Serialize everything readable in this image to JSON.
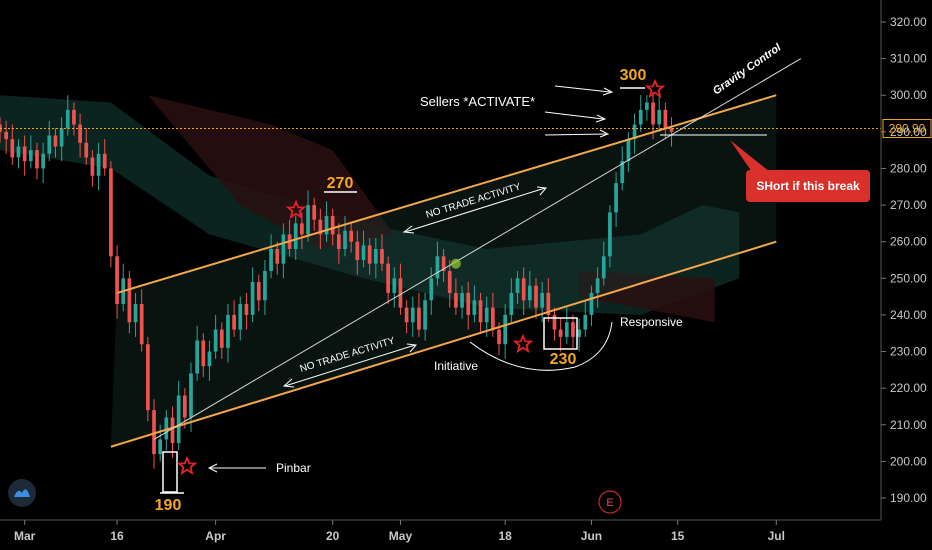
{
  "chart_data": {
    "type": "candlestick",
    "title": "",
    "price_axis": {
      "ticks": [
        "320.00",
        "310.00",
        "300.00",
        "290.00",
        "280.00",
        "270.00",
        "260.00",
        "250.00",
        "240.00",
        "230.00",
        "220.00",
        "210.00",
        "200.00",
        "190.00"
      ],
      "ylim": [
        184,
        326
      ],
      "current_price": "290.90"
    },
    "time_axis": {
      "ticks": [
        {
          "label": "Mar",
          "day": 0
        },
        {
          "label": "16",
          "day": 15
        },
        {
          "label": "Apr",
          "day": 31
        },
        {
          "label": "20",
          "day": 50
        },
        {
          "label": "May",
          "day": 61
        },
        {
          "label": "18",
          "day": 78
        },
        {
          "label": "Jun",
          "day": 92
        },
        {
          "label": "15",
          "day": 106
        },
        {
          "label": "Jul",
          "day": 122
        }
      ],
      "xlim": [
        -4,
        139
      ]
    },
    "candles": [
      [
        -4,
        292,
        290
      ],
      [
        -3,
        290,
        288
      ],
      [
        -2,
        288,
        283
      ],
      [
        -1,
        283,
        286
      ],
      [
        0,
        286,
        282
      ],
      [
        1,
        282,
        285
      ],
      [
        2,
        285,
        280
      ],
      [
        3,
        280,
        284
      ],
      [
        4,
        284,
        289
      ],
      [
        5,
        289,
        286
      ],
      [
        6,
        286,
        291
      ],
      [
        7,
        291,
        296
      ],
      [
        8,
        296,
        292
      ],
      [
        9,
        292,
        287
      ],
      [
        10,
        287,
        283
      ],
      [
        11,
        283,
        278
      ],
      [
        12,
        278,
        284
      ],
      [
        13,
        284,
        280
      ],
      [
        14,
        280,
        256
      ],
      [
        15,
        256,
        243
      ],
      [
        16,
        243,
        250
      ],
      [
        17,
        250,
        238
      ],
      [
        18,
        238,
        243
      ],
      [
        19,
        243,
        232
      ],
      [
        20,
        232,
        214
      ],
      [
        21,
        214,
        202
      ],
      [
        22,
        202,
        206
      ],
      [
        23,
        206,
        212
      ],
      [
        24,
        212,
        205
      ],
      [
        25,
        205,
        218
      ],
      [
        26,
        218,
        212
      ],
      [
        27,
        212,
        224
      ],
      [
        28,
        224,
        233
      ],
      [
        29,
        233,
        226
      ],
      [
        30,
        226,
        230
      ],
      [
        31,
        230,
        236
      ],
      [
        32,
        236,
        231
      ],
      [
        33,
        231,
        240
      ],
      [
        34,
        240,
        236
      ],
      [
        35,
        236,
        243
      ],
      [
        36,
        243,
        240
      ],
      [
        37,
        240,
        249
      ],
      [
        38,
        249,
        244
      ],
      [
        39,
        244,
        252
      ],
      [
        40,
        252,
        258
      ],
      [
        41,
        258,
        254
      ],
      [
        42,
        254,
        262
      ],
      [
        43,
        262,
        258
      ],
      [
        44,
        258,
        265
      ],
      [
        45,
        265,
        262
      ],
      [
        46,
        262,
        270
      ],
      [
        47,
        270,
        266
      ],
      [
        48,
        266,
        262
      ],
      [
        49,
        262,
        267
      ],
      [
        50,
        267,
        262
      ],
      [
        51,
        262,
        258
      ],
      [
        52,
        258,
        263
      ],
      [
        53,
        263,
        260
      ],
      [
        54,
        260,
        255
      ],
      [
        55,
        255,
        259
      ],
      [
        56,
        259,
        254
      ],
      [
        57,
        254,
        258
      ],
      [
        58,
        258,
        254
      ],
      [
        59,
        254,
        246
      ],
      [
        60,
        246,
        250
      ],
      [
        61,
        250,
        242
      ],
      [
        62,
        242,
        238
      ],
      [
        63,
        238,
        242
      ],
      [
        64,
        242,
        236
      ],
      [
        65,
        236,
        244
      ],
      [
        66,
        244,
        250
      ],
      [
        67,
        250,
        256
      ],
      [
        68,
        256,
        252
      ],
      [
        69,
        252,
        246
      ],
      [
        70,
        246,
        242
      ],
      [
        71,
        242,
        246
      ],
      [
        72,
        246,
        240
      ],
      [
        73,
        240,
        244
      ],
      [
        74,
        244,
        238
      ],
      [
        75,
        238,
        242
      ],
      [
        76,
        242,
        236
      ],
      [
        77,
        236,
        232
      ],
      [
        78,
        232,
        240
      ],
      [
        79,
        240,
        246
      ],
      [
        80,
        246,
        250
      ],
      [
        81,
        250,
        244
      ],
      [
        82,
        244,
        248
      ],
      [
        83,
        248,
        242
      ],
      [
        84,
        242,
        246
      ],
      [
        85,
        246,
        240
      ],
      [
        86,
        240,
        236
      ],
      [
        87,
        236,
        234
      ],
      [
        88,
        234,
        238
      ],
      [
        89,
        238,
        234
      ],
      [
        90,
        234,
        236
      ],
      [
        91,
        236,
        240
      ],
      [
        92,
        240,
        246
      ],
      [
        93,
        246,
        250
      ],
      [
        94,
        250,
        256
      ],
      [
        95,
        256,
        268
      ],
      [
        96,
        268,
        276
      ],
      [
        97,
        276,
        282
      ],
      [
        98,
        282,
        288
      ],
      [
        99,
        288,
        292
      ],
      [
        100,
        292,
        296
      ],
      [
        101,
        296,
        298
      ],
      [
        102,
        298,
        292
      ],
      [
        103,
        292,
        296
      ],
      [
        104,
        296,
        291
      ],
      [
        105,
        291,
        290
      ]
    ],
    "channel": {
      "upper": [
        [
          15,
          246
        ],
        [
          122,
          300
        ]
      ],
      "lower": [
        [
          14,
          204
        ],
        [
          122,
          260
        ]
      ]
    },
    "trendline": {
      "name": "Gravity Control",
      "points": [
        [
          21,
          206
        ],
        [
          126,
          310
        ]
      ]
    },
    "annotations": {
      "sellers": "Sellers *ACTIVATE*",
      "gravity": "Gravity Control",
      "no_trade_upper": "NO TRADE ACTIVITY",
      "no_trade_lower": "NO TRADE ACTIVITY",
      "initiative": "Initiative",
      "responsive": "Responsive",
      "pinbar": "Pinbar",
      "short_box": "SHort if this break",
      "event_marker": "E"
    },
    "levels": [
      {
        "label": "270",
        "price": 273
      },
      {
        "label": "300",
        "price": 302
      },
      {
        "label": "230",
        "price": 230
      },
      {
        "label": "190",
        "price": 191
      }
    ],
    "colors": {
      "up": "#26a69a",
      "down": "#ef5350",
      "channel": "#f5a54a",
      "price_line": "#f5a623",
      "short_box": "#d9302c"
    }
  }
}
